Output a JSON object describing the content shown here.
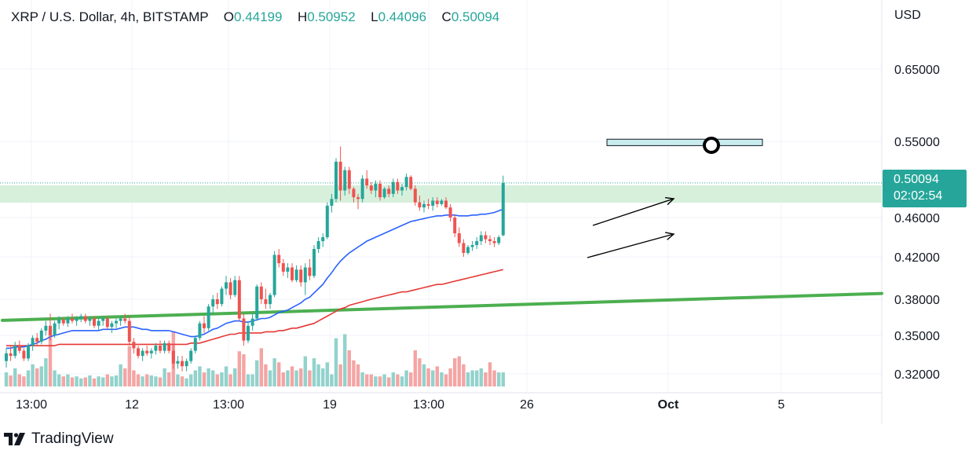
{
  "header": {
    "symbol": "XRP / U.S. Dollar, 4h, BITSTAMP",
    "open_label": "O",
    "open_value": "0.44199",
    "high_label": "H",
    "high_value": "0.50952",
    "low_label": "L",
    "low_value": "0.44096",
    "close_label": "C",
    "close_value": "0.50094"
  },
  "currency_label": "USD",
  "price_tag": {
    "price": "0.50094",
    "countdown": "02:02:54"
  },
  "brand": {
    "name": "TradingView"
  },
  "colors": {
    "up": "#26a69a",
    "down": "#ef5350",
    "up_volume": "#92d2cc",
    "down_volume": "#f4a5a4",
    "ma_fast": "#2962ff",
    "ma_slow": "#e53935",
    "trendline": "#4caf50",
    "zone": "#d7f0dc",
    "target_box": "#c9ecef"
  },
  "chart_data": {
    "type": "candlestick",
    "title": "XRP / U.S. Dollar, 4h, BITSTAMP",
    "y_ticks": [
      0.32,
      0.35,
      0.38,
      0.42,
      0.46,
      0.55,
      0.65
    ],
    "y_tick_labels": [
      "0.32000",
      "0.35000",
      "0.38000",
      "0.42000",
      "0.46000",
      "0.55000",
      "0.65000"
    ],
    "x_tick_labels": [
      "13:00",
      "12",
      "13:00",
      "19",
      "13:00",
      "26",
      "Oct",
      "5"
    ],
    "last_price": 0.50094,
    "candles": [
      [
        0.33,
        0.34,
        0.325,
        0.336
      ],
      [
        0.336,
        0.342,
        0.33,
        0.334
      ],
      [
        0.334,
        0.345,
        0.332,
        0.342
      ],
      [
        0.342,
        0.346,
        0.336,
        0.338
      ],
      [
        0.338,
        0.34,
        0.33,
        0.332
      ],
      [
        0.332,
        0.344,
        0.33,
        0.342
      ],
      [
        0.342,
        0.35,
        0.338,
        0.348
      ],
      [
        0.348,
        0.352,
        0.342,
        0.345
      ],
      [
        0.345,
        0.356,
        0.343,
        0.354
      ],
      [
        0.354,
        0.362,
        0.35,
        0.358
      ],
      [
        0.358,
        0.368,
        0.346,
        0.35
      ],
      [
        0.35,
        0.362,
        0.348,
        0.36
      ],
      [
        0.36,
        0.366,
        0.355,
        0.363
      ],
      [
        0.363,
        0.365,
        0.358,
        0.36
      ],
      [
        0.36,
        0.366,
        0.357,
        0.364
      ],
      [
        0.364,
        0.368,
        0.36,
        0.362
      ],
      [
        0.362,
        0.366,
        0.358,
        0.364
      ],
      [
        0.364,
        0.368,
        0.361,
        0.366
      ],
      [
        0.366,
        0.368,
        0.36,
        0.362
      ],
      [
        0.362,
        0.366,
        0.358,
        0.364
      ],
      [
        0.364,
        0.366,
        0.356,
        0.358
      ],
      [
        0.358,
        0.364,
        0.354,
        0.362
      ],
      [
        0.362,
        0.366,
        0.358,
        0.364
      ],
      [
        0.364,
        0.366,
        0.355,
        0.357
      ],
      [
        0.357,
        0.362,
        0.352,
        0.36
      ],
      [
        0.36,
        0.364,
        0.356,
        0.362
      ],
      [
        0.362,
        0.366,
        0.358,
        0.364
      ],
      [
        0.364,
        0.368,
        0.36,
        0.362
      ],
      [
        0.362,
        0.366,
        0.342,
        0.345
      ],
      [
        0.345,
        0.348,
        0.336,
        0.34
      ],
      [
        0.34,
        0.342,
        0.332,
        0.334
      ],
      [
        0.334,
        0.34,
        0.33,
        0.338
      ],
      [
        0.338,
        0.342,
        0.334,
        0.336
      ],
      [
        0.336,
        0.34,
        0.332,
        0.338
      ],
      [
        0.338,
        0.344,
        0.335,
        0.342
      ],
      [
        0.342,
        0.346,
        0.336,
        0.338
      ],
      [
        0.338,
        0.346,
        0.336,
        0.344
      ],
      [
        0.344,
        0.346,
        0.336,
        0.338
      ],
      [
        0.338,
        0.342,
        0.324,
        0.328
      ],
      [
        0.328,
        0.334,
        0.324,
        0.33
      ],
      [
        0.33,
        0.334,
        0.322,
        0.326
      ],
      [
        0.326,
        0.332,
        0.322,
        0.33
      ],
      [
        0.33,
        0.34,
        0.328,
        0.338
      ],
      [
        0.338,
        0.35,
        0.336,
        0.348
      ],
      [
        0.348,
        0.362,
        0.346,
        0.36
      ],
      [
        0.36,
        0.366,
        0.352,
        0.356
      ],
      [
        0.356,
        0.376,
        0.354,
        0.374
      ],
      [
        0.374,
        0.384,
        0.368,
        0.38
      ],
      [
        0.38,
        0.386,
        0.372,
        0.376
      ],
      [
        0.376,
        0.392,
        0.374,
        0.39
      ],
      [
        0.39,
        0.402,
        0.384,
        0.396
      ],
      [
        0.396,
        0.4,
        0.38,
        0.384
      ],
      [
        0.384,
        0.402,
        0.382,
        0.398
      ],
      [
        0.398,
        0.402,
        0.362,
        0.364
      ],
      [
        0.364,
        0.368,
        0.342,
        0.346
      ],
      [
        0.346,
        0.362,
        0.344,
        0.358
      ],
      [
        0.358,
        0.368,
        0.354,
        0.364
      ],
      [
        0.364,
        0.394,
        0.362,
        0.392
      ],
      [
        0.392,
        0.396,
        0.376,
        0.38
      ],
      [
        0.38,
        0.39,
        0.372,
        0.376
      ],
      [
        0.376,
        0.386,
        0.372,
        0.384
      ],
      [
        0.384,
        0.426,
        0.382,
        0.422
      ],
      [
        0.422,
        0.428,
        0.41,
        0.414
      ],
      [
        0.414,
        0.418,
        0.402,
        0.406
      ],
      [
        0.406,
        0.414,
        0.4,
        0.41
      ],
      [
        0.41,
        0.414,
        0.396,
        0.398
      ],
      [
        0.398,
        0.412,
        0.396,
        0.408
      ],
      [
        0.408,
        0.412,
        0.392,
        0.396
      ],
      [
        0.396,
        0.414,
        0.384,
        0.41
      ],
      [
        0.41,
        0.418,
        0.398,
        0.402
      ],
      [
        0.402,
        0.432,
        0.4,
        0.428
      ],
      [
        0.428,
        0.44,
        0.424,
        0.436
      ],
      [
        0.436,
        0.444,
        0.43,
        0.44
      ],
      [
        0.44,
        0.478,
        0.438,
        0.474
      ],
      [
        0.474,
        0.488,
        0.466,
        0.482
      ],
      [
        0.482,
        0.53,
        0.478,
        0.526
      ],
      [
        0.526,
        0.544,
        0.48,
        0.492
      ],
      [
        0.492,
        0.52,
        0.486,
        0.516
      ],
      [
        0.516,
        0.52,
        0.488,
        0.494
      ],
      [
        0.494,
        0.496,
        0.478,
        0.484
      ],
      [
        0.484,
        0.488,
        0.47,
        0.482
      ],
      [
        0.482,
        0.51,
        0.478,
        0.506
      ],
      [
        0.506,
        0.516,
        0.494,
        0.498
      ],
      [
        0.498,
        0.502,
        0.488,
        0.492
      ],
      [
        0.492,
        0.504,
        0.484,
        0.5
      ],
      [
        0.5,
        0.504,
        0.48,
        0.484
      ],
      [
        0.484,
        0.496,
        0.482,
        0.494
      ],
      [
        0.494,
        0.498,
        0.484,
        0.488
      ],
      [
        0.488,
        0.506,
        0.484,
        0.502
      ],
      [
        0.502,
        0.506,
        0.488,
        0.492
      ],
      [
        0.492,
        0.5,
        0.486,
        0.496
      ],
      [
        0.496,
        0.512,
        0.492,
        0.508
      ],
      [
        0.508,
        0.51,
        0.492,
        0.494
      ],
      [
        0.494,
        0.498,
        0.474,
        0.478
      ],
      [
        0.478,
        0.486,
        0.468,
        0.472
      ],
      [
        0.472,
        0.48,
        0.466,
        0.476
      ],
      [
        0.476,
        0.482,
        0.47,
        0.474
      ],
      [
        0.474,
        0.484,
        0.468,
        0.48
      ],
      [
        0.48,
        0.484,
        0.472,
        0.476
      ],
      [
        0.476,
        0.482,
        0.474,
        0.48
      ],
      [
        0.48,
        0.484,
        0.47,
        0.472
      ],
      [
        0.472,
        0.476,
        0.456,
        0.46
      ],
      [
        0.46,
        0.464,
        0.44,
        0.444
      ],
      [
        0.444,
        0.45,
        0.43,
        0.434
      ],
      [
        0.434,
        0.438,
        0.42,
        0.424
      ],
      [
        0.424,
        0.432,
        0.422,
        0.43
      ],
      [
        0.43,
        0.436,
        0.426,
        0.432
      ],
      [
        0.432,
        0.44,
        0.428,
        0.436
      ],
      [
        0.436,
        0.446,
        0.432,
        0.442
      ],
      [
        0.442,
        0.446,
        0.434,
        0.438
      ],
      [
        0.438,
        0.442,
        0.432,
        0.436
      ],
      [
        0.436,
        0.44,
        0.43,
        0.434
      ],
      [
        0.434,
        0.442,
        0.432,
        0.44
      ],
      [
        0.44199,
        0.50952,
        0.44096,
        0.50094
      ]
    ],
    "volumes": [
      14,
      11,
      18,
      12,
      10,
      16,
      22,
      18,
      20,
      28,
      58,
      16,
      12,
      10,
      12,
      9,
      10,
      8,
      9,
      11,
      8,
      10,
      9,
      12,
      10,
      11,
      22,
      18,
      40,
      16,
      12,
      10,
      12,
      11,
      10,
      9,
      18,
      14,
      55,
      12,
      10,
      8,
      12,
      16,
      20,
      14,
      18,
      16,
      12,
      14,
      20,
      12,
      18,
      35,
      32,
      12,
      12,
      26,
      38,
      22,
      16,
      28,
      24,
      14,
      16,
      20,
      16,
      18,
      30,
      16,
      28,
      22,
      18,
      24,
      12,
      48,
      22,
      52,
      36,
      26,
      22,
      14,
      12,
      12,
      10,
      10,
      12,
      9,
      14,
      12,
      10,
      16,
      14,
      36,
      28,
      22,
      18,
      16,
      20,
      14,
      12,
      18,
      28,
      30,
      22,
      14,
      16,
      16,
      18,
      14,
      24,
      16,
      14,
      14,
      14,
      14
    ],
    "ma_fast": [
      0.34,
      0.34,
      0.341,
      0.341,
      0.341,
      0.342,
      0.343,
      0.344,
      0.346,
      0.347,
      0.349,
      0.35,
      0.351,
      0.352,
      0.353,
      0.354,
      0.354,
      0.354,
      0.354,
      0.354,
      0.354,
      0.354,
      0.355,
      0.355,
      0.355,
      0.355,
      0.356,
      0.357,
      0.357,
      0.357,
      0.356,
      0.355,
      0.355,
      0.354,
      0.354,
      0.354,
      0.354,
      0.354,
      0.353,
      0.352,
      0.351,
      0.35,
      0.349,
      0.349,
      0.35,
      0.351,
      0.353,
      0.355,
      0.356,
      0.358,
      0.36,
      0.361,
      0.362,
      0.362,
      0.361,
      0.361,
      0.362,
      0.363,
      0.364,
      0.364,
      0.365,
      0.367,
      0.369,
      0.37,
      0.371,
      0.373,
      0.375,
      0.377,
      0.38,
      0.382,
      0.386,
      0.39,
      0.394,
      0.4,
      0.405,
      0.411,
      0.416,
      0.42,
      0.424,
      0.427,
      0.43,
      0.433,
      0.436,
      0.438,
      0.44,
      0.442,
      0.444,
      0.446,
      0.448,
      0.45,
      0.452,
      0.454,
      0.456,
      0.457,
      0.458,
      0.459,
      0.46,
      0.461,
      0.462,
      0.462,
      0.463,
      0.463,
      0.463,
      0.462,
      0.462,
      0.462,
      0.463,
      0.463,
      0.464,
      0.464,
      0.465,
      0.466,
      0.468,
      0.47
    ],
    "ma_slow": [
      0.342,
      0.342,
      0.342,
      0.342,
      0.342,
      0.342,
      0.342,
      0.342,
      0.342,
      0.342,
      0.342,
      0.342,
      0.343,
      0.343,
      0.343,
      0.343,
      0.343,
      0.343,
      0.343,
      0.343,
      0.343,
      0.343,
      0.343,
      0.343,
      0.343,
      0.343,
      0.343,
      0.343,
      0.343,
      0.343,
      0.343,
      0.343,
      0.343,
      0.343,
      0.343,
      0.343,
      0.343,
      0.343,
      0.343,
      0.343,
      0.343,
      0.343,
      0.344,
      0.344,
      0.344,
      0.345,
      0.346,
      0.347,
      0.348,
      0.349,
      0.35,
      0.351,
      0.351,
      0.352,
      0.352,
      0.352,
      0.352,
      0.352,
      0.352,
      0.353,
      0.353,
      0.353,
      0.354,
      0.354,
      0.355,
      0.356,
      0.356,
      0.357,
      0.358,
      0.359,
      0.36,
      0.362,
      0.364,
      0.366,
      0.368,
      0.37,
      0.372,
      0.373,
      0.375,
      0.376,
      0.377,
      0.378,
      0.379,
      0.38,
      0.381,
      0.382,
      0.383,
      0.384,
      0.385,
      0.386,
      0.387,
      0.387,
      0.388,
      0.389,
      0.39,
      0.391,
      0.392,
      0.393,
      0.394,
      0.394,
      0.395,
      0.396,
      0.397,
      0.398,
      0.399,
      0.4,
      0.401,
      0.402,
      0.403,
      0.404,
      0.405,
      0.406,
      0.407,
      0.408
    ],
    "support_trendline": {
      "from_price": 0.3625,
      "to_price": 0.3855
    },
    "resistance_zone": {
      "low": 0.485,
      "high": 0.5
    },
    "target_box": {
      "low": 0.545,
      "high": 0.553
    }
  }
}
